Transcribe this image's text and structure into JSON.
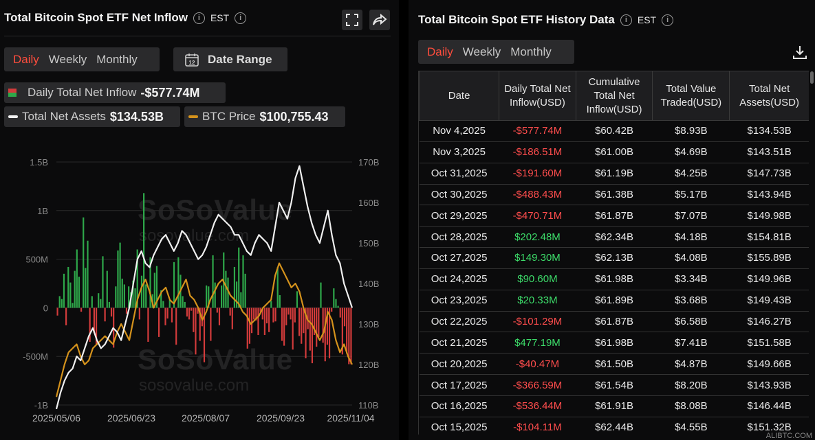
{
  "left": {
    "title": "Total Bitcoin Spot ETF Net Inflow",
    "tz": "EST",
    "tabs": [
      "Daily",
      "Weekly",
      "Monthly"
    ],
    "active_tab": "Daily",
    "date_range_label": "Date Range",
    "date_range_icon_text": "12",
    "daily_inflow_label": "Daily Total Net Inflow",
    "daily_inflow_value": "-$577.74M",
    "net_assets_label": "Total Net Assets",
    "net_assets_value": "$134.53B",
    "btc_price_label": "BTC Price",
    "btc_price_value": "$100,755.43",
    "watermark_brand": "SoSoValue",
    "watermark_url": "sosovalue.com"
  },
  "chart_data": {
    "type": "bar",
    "title": "Total Bitcoin Spot ETF Net Inflow",
    "left_axis_ticks": [
      "1.5B",
      "1B",
      "500M",
      "0",
      "-500M",
      "-1B"
    ],
    "right_axis_ticks": [
      "170B",
      "160B",
      "150B",
      "140B",
      "130B",
      "120B",
      "110B"
    ],
    "x_ticks": [
      "2025/05/06",
      "2025/06/23",
      "2025/08/07",
      "2025/09/23",
      "2025/11/04"
    ],
    "ylim_left": [
      -1000000000,
      1500000000
    ],
    "ylim_right": [
      110000000000,
      170000000000
    ],
    "colors": {
      "inflow": "#2ea84a",
      "outflow": "#d23b3b",
      "net_assets": "#f0f0f0",
      "btc_price": "#d4921c"
    },
    "series": [
      {
        "name": "Daily Total Net Inflow",
        "axis": "left",
        "values": [
          -80,
          120,
          90,
          350,
          -180,
          420,
          260,
          50,
          380,
          600,
          320,
          -40,
          930,
          410,
          690,
          -350,
          120,
          -260,
          -380,
          150,
          90,
          530,
          -140,
          380,
          60,
          -90,
          -410,
          220,
          590,
          670,
          300,
          240,
          -60,
          220,
          160,
          280,
          200,
          600,
          -120,
          330,
          1180,
          240,
          -350,
          520,
          140,
          360,
          430,
          -300,
          180,
          70,
          -180,
          -110,
          80,
          -150,
          470,
          -380,
          520,
          340,
          120,
          60,
          -90,
          -120,
          -30,
          -250,
          -480,
          -60,
          -340,
          -190,
          -560,
          230,
          220,
          -340,
          540,
          260,
          -50,
          -180,
          230,
          570,
          380,
          310,
          -80,
          -220,
          420,
          270,
          620,
          160,
          540,
          350,
          -420,
          -370,
          -260,
          -120,
          -130,
          -280,
          -40,
          -120,
          -280,
          -160,
          -250,
          70,
          -150,
          -140,
          420,
          130,
          -340,
          -390,
          -180,
          -70,
          -120,
          -430,
          -150,
          170,
          -290,
          -370,
          -260,
          -520,
          -220,
          -440,
          -570,
          -280,
          -400,
          -300,
          260,
          -360,
          -550,
          -380,
          -520,
          -40,
          200,
          90,
          20,
          -100,
          -480,
          -190,
          -470,
          -580,
          -580
        ],
        "note": "daily net inflow in $M, estimated"
      },
      {
        "name": "Total Net Assets",
        "axis": "right",
        "values": [
          109,
          113,
          116,
          118,
          119,
          122,
          121,
          124,
          127,
          129,
          126,
          124,
          125,
          127,
          129,
          128,
          126,
          130,
          134,
          140,
          146,
          148,
          145,
          144,
          147,
          149,
          151,
          152,
          150,
          148,
          150,
          153,
          152,
          150,
          148,
          146,
          147,
          149,
          152,
          155,
          157,
          156,
          155,
          154,
          152,
          152,
          150,
          148,
          147,
          150,
          152,
          151,
          150,
          148,
          154,
          160,
          158,
          156,
          160,
          166,
          169,
          164,
          159,
          155,
          152,
          150,
          154,
          158,
          152,
          147,
          145,
          140,
          137,
          134
        ]
      },
      {
        "name": "BTC Price",
        "axis": "right",
        "values": [
          112,
          116,
          120,
          123,
          124,
          125,
          122,
          120,
          121,
          124,
          125,
          126,
          127,
          126,
          125,
          128,
          130,
          128,
          126,
          131,
          136,
          139,
          141,
          138,
          134,
          136,
          138,
          139,
          136,
          135,
          137,
          139,
          141,
          137,
          136,
          134,
          131,
          133,
          136,
          138,
          140,
          141,
          139,
          137,
          136,
          135,
          133,
          132,
          130,
          131,
          132,
          134,
          135,
          136,
          142,
          145,
          143,
          141,
          139,
          140,
          138,
          134,
          131,
          130,
          128,
          126,
          128,
          133,
          131,
          126,
          123,
          125,
          122,
          120
        ]
      }
    ]
  },
  "right": {
    "title": "Total Bitcoin Spot ETF History Data",
    "tz": "EST",
    "tabs": [
      "Daily",
      "Weekly",
      "Monthly"
    ],
    "active_tab": "Daily",
    "columns": [
      "Date",
      "Daily Total Net Inflow(USD)",
      "Cumulative Total Net Inflow(USD)",
      "Total Value Traded(USD)",
      "Total Net Assets(USD)"
    ],
    "rows": [
      [
        "Nov 4,2025",
        "-$577.74M",
        "$60.42B",
        "$8.93B",
        "$134.53B"
      ],
      [
        "Nov 3,2025",
        "-$186.51M",
        "$61.00B",
        "$4.69B",
        "$143.51B"
      ],
      [
        "Oct 31,2025",
        "-$191.60M",
        "$61.19B",
        "$4.25B",
        "$147.73B"
      ],
      [
        "Oct 30,2025",
        "-$488.43M",
        "$61.38B",
        "$5.17B",
        "$143.94B"
      ],
      [
        "Oct 29,2025",
        "-$470.71M",
        "$61.87B",
        "$7.07B",
        "$149.98B"
      ],
      [
        "Oct 28,2025",
        "$202.48M",
        "$62.34B",
        "$4.18B",
        "$154.81B"
      ],
      [
        "Oct 27,2025",
        "$149.30M",
        "$62.13B",
        "$4.08B",
        "$155.89B"
      ],
      [
        "Oct 24,2025",
        "$90.60M",
        "$61.98B",
        "$3.34B",
        "$149.96B"
      ],
      [
        "Oct 23,2025",
        "$20.33M",
        "$61.89B",
        "$3.68B",
        "$149.43B"
      ],
      [
        "Oct 22,2025",
        "-$101.29M",
        "$61.87B",
        "$6.58B",
        "$146.27B"
      ],
      [
        "Oct 21,2025",
        "$477.19M",
        "$61.98B",
        "$7.41B",
        "$151.58B"
      ],
      [
        "Oct 20,2025",
        "-$40.47M",
        "$61.50B",
        "$4.87B",
        "$149.66B"
      ],
      [
        "Oct 17,2025",
        "-$366.59M",
        "$61.54B",
        "$8.20B",
        "$143.93B"
      ],
      [
        "Oct 16,2025",
        "-$536.44M",
        "$61.91B",
        "$8.08B",
        "$146.44B"
      ],
      [
        "Oct 15,2025",
        "-$104.11M",
        "$62.44B",
        "$4.55B",
        "$151.32B"
      ]
    ]
  },
  "corner_mark": "ALIBTC.COM"
}
